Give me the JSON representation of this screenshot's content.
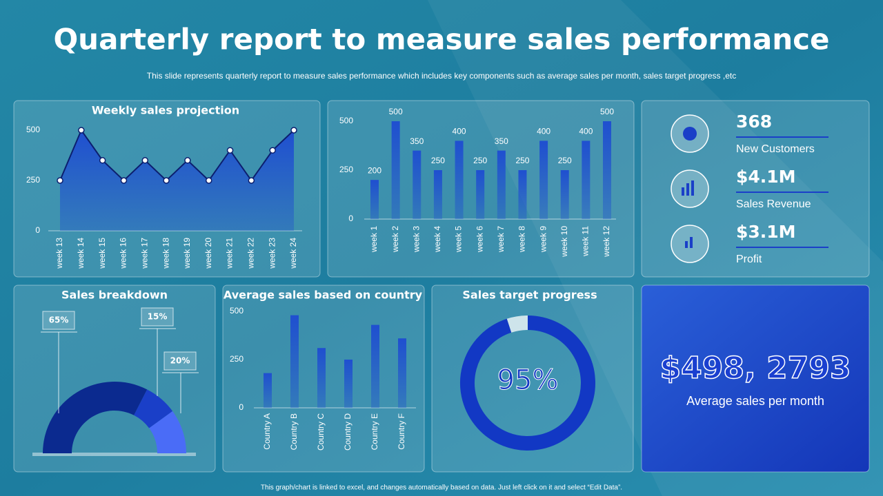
{
  "header": {
    "title": "Quarterly report to measure sales performance",
    "subtitle": "This slide represents quarterly report to measure sales performance which includes key components such as average sales per month, sales target progress ,etc"
  },
  "chart_data": [
    {
      "type": "area",
      "title": "Weekly sales projection",
      "categories": [
        "week 13",
        "week 14",
        "week 15",
        "week 16",
        "week 17",
        "week 18",
        "week 19",
        "week 20",
        "week 21",
        "week 22",
        "week 23",
        "week 24"
      ],
      "values": [
        250,
        500,
        350,
        250,
        350,
        250,
        350,
        250,
        400,
        250,
        400,
        500
      ],
      "color": "#1f4fd0",
      "ylim": [
        0,
        500
      ],
      "yticks": [
        0,
        250,
        500
      ]
    },
    {
      "type": "bar",
      "categories": [
        "week 1",
        "week 2",
        "week 3",
        "week 4",
        "week 5",
        "week 6",
        "week 7",
        "week 8",
        "week 9",
        "week 10",
        "week 11",
        "week 12"
      ],
      "values": [
        200,
        500,
        350,
        250,
        400,
        250,
        350,
        250,
        400,
        250,
        400,
        500
      ],
      "color": "#1f4fd0",
      "ylim": [
        0,
        500
      ],
      "yticks": [
        0,
        250,
        500
      ],
      "data_labels": true
    },
    {
      "type": "semidonut",
      "title": "Sales breakdown",
      "values": [
        65,
        15,
        20
      ],
      "value_labels": [
        "65%",
        "15%",
        "20%"
      ],
      "colors": [
        "#0b2a8f",
        "#1a3fc8",
        "#4a6cf7"
      ]
    },
    {
      "type": "bar",
      "title": "Average sales based on country",
      "categories": [
        "Country A",
        "Country B",
        "Country C",
        "Country D",
        "Country E",
        "Country F"
      ],
      "values": [
        180,
        480,
        310,
        250,
        430,
        360
      ],
      "color": "#1f4fd0",
      "ylim": [
        0,
        500
      ],
      "yticks": [
        0,
        250,
        500
      ]
    },
    {
      "type": "donut",
      "title": "Sales target progress",
      "values": [
        95
      ],
      "value_labels": [
        "95%"
      ],
      "color": "#1238c4"
    }
  ],
  "kpis": [
    {
      "value": "368",
      "label": "New Customers"
    },
    {
      "value": "$4.1M",
      "label": "Sales Revenue"
    },
    {
      "value": "$3.1M",
      "label": "Profit"
    }
  ],
  "highlight": {
    "value": "$498, 2793",
    "label": "Average sales per month"
  },
  "footer": "This graph/chart is linked to excel, and changes automatically based on data. Just left click on it and select “Edit Data”."
}
